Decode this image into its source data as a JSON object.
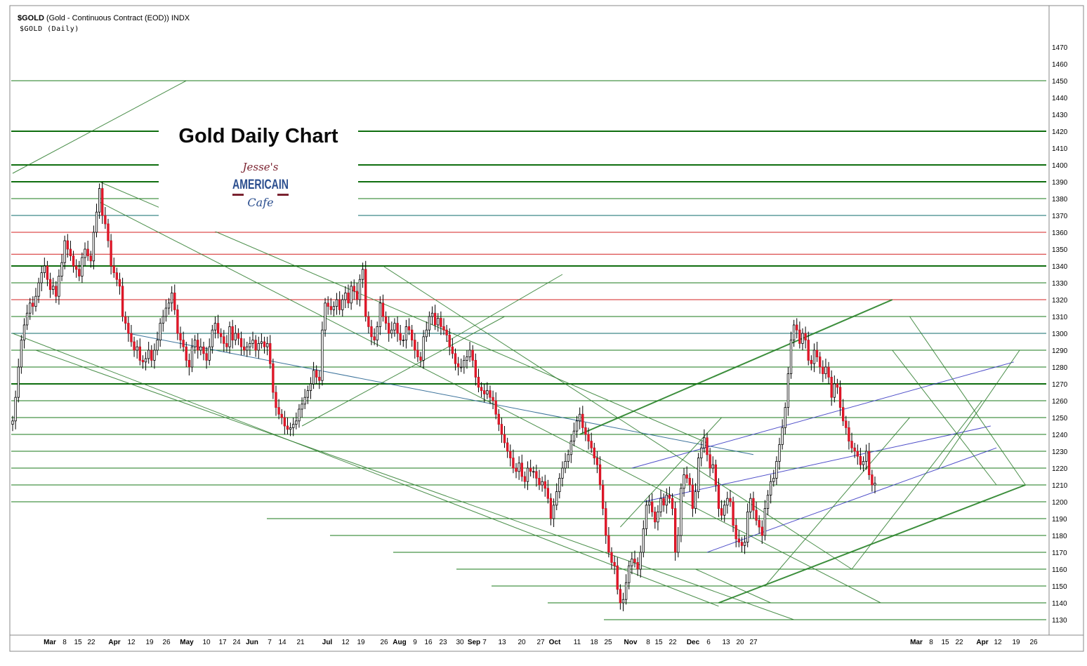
{
  "header": {
    "symbol": "$GOLD",
    "description": "(Gold - Continuous Contract (EOD)) INDX",
    "subtitle": "$GOLD (Daily)"
  },
  "overlay": {
    "title": "Gold Daily Chart",
    "logo": {
      "line1": "Jesse's",
      "line2": "AMERICAIN",
      "line3": "Cafe",
      "icon": "cafe-logo"
    }
  },
  "chart_data": {
    "type": "candlestick",
    "yaxis_side": "right",
    "ylim": [
      1126,
      1480
    ],
    "yticks": [
      1130,
      1140,
      1150,
      1160,
      1170,
      1180,
      1190,
      1200,
      1210,
      1220,
      1230,
      1240,
      1250,
      1260,
      1270,
      1280,
      1290,
      1300,
      1310,
      1320,
      1330,
      1340,
      1350,
      1360,
      1370,
      1380,
      1390,
      1400,
      1410,
      1420,
      1430,
      1440,
      1450,
      1460,
      1470
    ],
    "xticks": [
      {
        "label": "Mar",
        "bold": true
      },
      {
        "label": "8"
      },
      {
        "label": "15"
      },
      {
        "label": "22"
      },
      {
        "label": "Apr",
        "bold": true
      },
      {
        "label": "12"
      },
      {
        "label": "19"
      },
      {
        "label": "26"
      },
      {
        "label": "May",
        "bold": true
      },
      {
        "label": "10"
      },
      {
        "label": "17"
      },
      {
        "label": "24"
      },
      {
        "label": "Jun",
        "bold": true
      },
      {
        "label": "7"
      },
      {
        "label": "14"
      },
      {
        "label": "21"
      },
      {
        "label": "Jul",
        "bold": true
      },
      {
        "label": "12"
      },
      {
        "label": "19"
      },
      {
        "label": "26"
      },
      {
        "label": "Aug",
        "bold": true
      },
      {
        "label": "9"
      },
      {
        "label": "16"
      },
      {
        "label": "23"
      },
      {
        "label": "30"
      },
      {
        "label": "Sep",
        "bold": true
      },
      {
        "label": "7"
      },
      {
        "label": "13"
      },
      {
        "label": "20"
      },
      {
        "label": "27"
      },
      {
        "label": "Oct",
        "bold": true
      },
      {
        "label": "11"
      },
      {
        "label": "18"
      },
      {
        "label": "25"
      },
      {
        "label": "Nov",
        "bold": true
      },
      {
        "label": "8"
      },
      {
        "label": "15"
      },
      {
        "label": "22"
      },
      {
        "label": "Dec",
        "bold": true
      },
      {
        "label": "6"
      },
      {
        "label": "13"
      },
      {
        "label": "20"
      },
      {
        "label": "27"
      },
      {
        "label": "Mar",
        "bold": true
      },
      {
        "label": "8"
      },
      {
        "label": "15"
      },
      {
        "label": "22"
      },
      {
        "label": "Apr",
        "bold": true
      },
      {
        "label": "12"
      },
      {
        "label": "19"
      },
      {
        "label": "26"
      }
    ],
    "horizontal_levels": [
      {
        "y": 1450,
        "color": "#1a7a1a",
        "weight": "thin"
      },
      {
        "y": 1420,
        "color": "#0f6e0f",
        "weight": "thick"
      },
      {
        "y": 1400,
        "color": "#0f6e0f",
        "weight": "thick"
      },
      {
        "y": 1390,
        "color": "#0f6e0f",
        "weight": "thick"
      },
      {
        "y": 1380,
        "color": "#1a7a1a",
        "weight": "thin"
      },
      {
        "y": 1370,
        "color": "#0e6b6b",
        "weight": "thin"
      },
      {
        "y": 1360,
        "color": "#d42020",
        "weight": "thin"
      },
      {
        "y": 1347,
        "color": "#d42020",
        "weight": "thin"
      },
      {
        "y": 1340,
        "color": "#0f6e0f",
        "weight": "thick"
      },
      {
        "y": 1330,
        "color": "#1a7a1a",
        "weight": "thin"
      },
      {
        "y": 1320,
        "color": "#d42020",
        "weight": "thin"
      },
      {
        "y": 1310,
        "color": "#1a7a1a",
        "weight": "thin"
      },
      {
        "y": 1300,
        "color": "#0e6b6b",
        "weight": "thin"
      },
      {
        "y": 1290,
        "color": "#1a7a1a",
        "weight": "thin"
      },
      {
        "y": 1280,
        "color": "#1a7a1a",
        "weight": "thin"
      },
      {
        "y": 1270,
        "color": "#0f6e0f",
        "weight": "thick"
      },
      {
        "y": 1260,
        "color": "#1a7a1a",
        "weight": "thin"
      },
      {
        "y": 1250,
        "color": "#1a7a1a",
        "weight": "thin"
      },
      {
        "y": 1240,
        "color": "#1a7a1a",
        "weight": "thin"
      },
      {
        "y": 1230,
        "color": "#1a7a1a",
        "weight": "thin"
      },
      {
        "y": 1220,
        "color": "#1a7a1a",
        "weight": "thin"
      },
      {
        "y": 1210,
        "color": "#1a7a1a",
        "weight": "thin"
      },
      {
        "y": 1200,
        "color": "#1a7a1a",
        "weight": "thin"
      },
      {
        "y": 1190,
        "color": "#1a7a1a",
        "weight": "thin"
      },
      {
        "y": 1180,
        "color": "#1a7a1a",
        "weight": "thin"
      },
      {
        "y": 1170,
        "color": "#1a7a1a",
        "weight": "thin"
      },
      {
        "y": 1160,
        "color": "#1a7a1a",
        "weight": "thin"
      },
      {
        "y": 1150,
        "color": "#1a7a1a",
        "weight": "thin"
      },
      {
        "y": 1140,
        "color": "#1a7a1a",
        "weight": "thin"
      },
      {
        "y": 1130,
        "color": "#1a7a1a",
        "weight": "thin"
      }
    ],
    "closes": [
      1248,
      1262,
      1280,
      1296,
      1305,
      1312,
      1318,
      1316,
      1322,
      1330,
      1336,
      1340,
      1332,
      1326,
      1328,
      1322,
      1334,
      1342,
      1355,
      1350,
      1346,
      1340,
      1338,
      1334,
      1345,
      1350,
      1346,
      1343,
      1360,
      1372,
      1386,
      1370,
      1365,
      1355,
      1340,
      1336,
      1332,
      1328,
      1310,
      1306,
      1300,
      1295,
      1290,
      1292,
      1284,
      1283,
      1285,
      1290,
      1284,
      1290,
      1296,
      1306,
      1310,
      1315,
      1318,
      1324,
      1314,
      1300,
      1296,
      1292,
      1284,
      1280,
      1292,
      1296,
      1290,
      1292,
      1288,
      1284,
      1292,
      1302,
      1306,
      1300,
      1298,
      1294,
      1292,
      1304,
      1296,
      1300,
      1297,
      1292,
      1290,
      1292,
      1294,
      1296,
      1290,
      1294,
      1295,
      1292,
      1294,
      1282,
      1265,
      1256,
      1252,
      1250,
      1245,
      1243,
      1244,
      1246,
      1248,
      1255,
      1258,
      1262,
      1266,
      1270,
      1278,
      1274,
      1272,
      1302,
      1318,
      1316,
      1314,
      1316,
      1320,
      1314,
      1320,
      1324,
      1318,
      1328,
      1325,
      1320,
      1332,
      1338,
      1310,
      1304,
      1298,
      1296,
      1304,
      1318,
      1310,
      1306,
      1300,
      1302,
      1306,
      1300,
      1296,
      1296,
      1304,
      1302,
      1296,
      1290,
      1286,
      1284,
      1298,
      1302,
      1310,
      1312,
      1305,
      1309,
      1304,
      1302,
      1299,
      1292,
      1288,
      1282,
      1280,
      1280,
      1284,
      1286,
      1290,
      1284,
      1274,
      1268,
      1266,
      1264,
      1266,
      1262,
      1260,
      1252,
      1246,
      1240,
      1235,
      1230,
      1226,
      1220,
      1218,
      1223,
      1215,
      1212,
      1220,
      1218,
      1218,
      1214,
      1210,
      1212,
      1208,
      1202,
      1190,
      1198,
      1206,
      1214,
      1220,
      1224,
      1228,
      1236,
      1242,
      1248,
      1252,
      1244,
      1240,
      1236,
      1232,
      1226,
      1222,
      1210,
      1196,
      1180,
      1170,
      1164,
      1162,
      1148,
      1140,
      1142,
      1152,
      1162,
      1166,
      1164,
      1160,
      1170,
      1184,
      1198,
      1200,
      1194,
      1188,
      1194,
      1202,
      1198,
      1204,
      1202,
      1196,
      1170,
      1180,
      1208,
      1216,
      1214,
      1210,
      1196,
      1206,
      1226,
      1232,
      1238,
      1228,
      1220,
      1222,
      1210,
      1196,
      1192,
      1198,
      1202,
      1200,
      1186,
      1178,
      1176,
      1174,
      1176,
      1194,
      1202,
      1195,
      1189,
      1185,
      1180,
      1196,
      1204,
      1212,
      1214,
      1224,
      1234,
      1244,
      1256,
      1276,
      1296,
      1305,
      1302,
      1294,
      1300,
      1296,
      1284,
      1282,
      1290,
      1286,
      1280,
      1276,
      1280,
      1274,
      1262,
      1270,
      1268,
      1256,
      1248,
      1244,
      1236,
      1232,
      1230,
      1227,
      1222,
      1224,
      1230,
      1216,
      1210,
      1211
    ]
  }
}
